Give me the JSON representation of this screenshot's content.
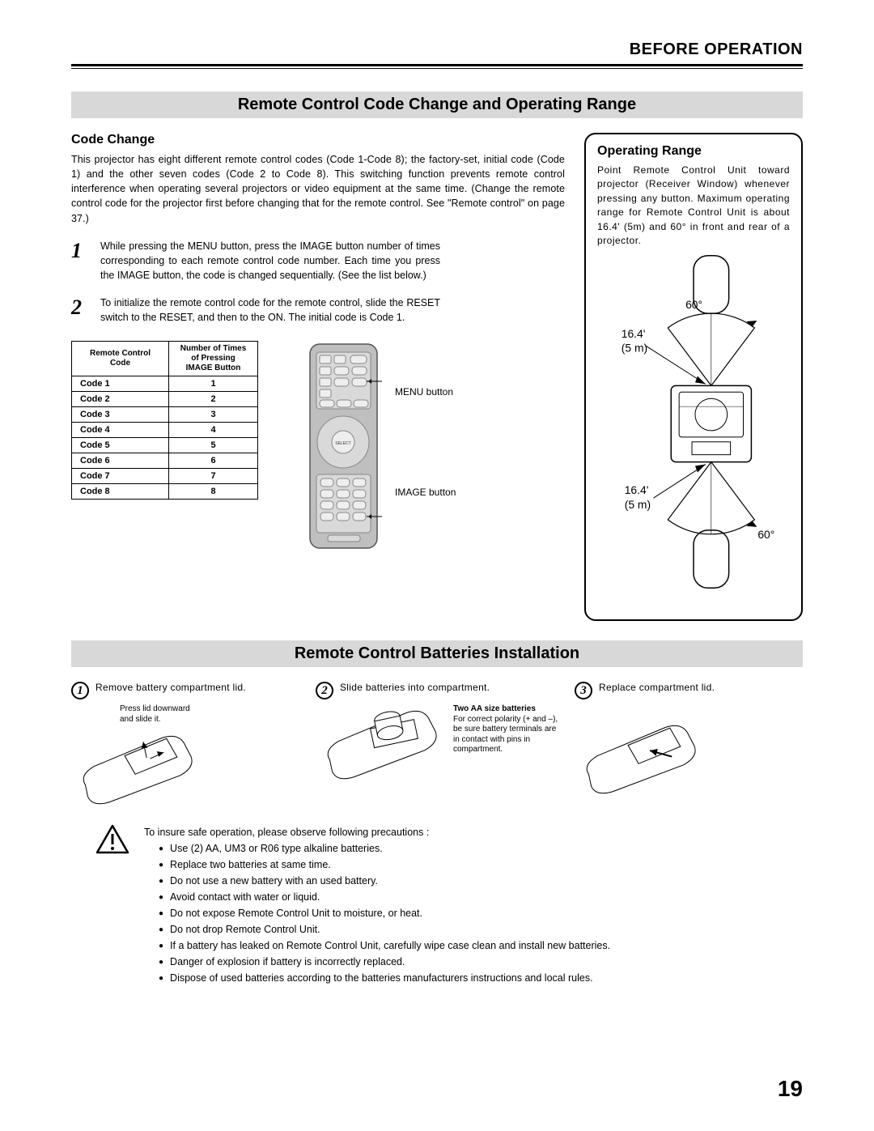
{
  "header": {
    "title": "BEFORE OPERATION"
  },
  "section1": {
    "bar": "Remote Control Code Change and Operating Range",
    "code_change": {
      "heading": "Code Change",
      "intro": "This projector has eight different remote control codes (Code 1-Code 8); the factory-set, initial code (Code 1) and the other seven codes (Code 2 to Code 8). This switching function prevents remote control interference when operating several projectors or video equipment at the same time.  (Change the remote control code for the projector first before changing that for the remote control.  See \"Remote control\" on page 37.)",
      "step1_num": "1",
      "step1": "While pressing the MENU button, press the IMAGE button number of times corresponding to each remote control code number. Each time you press the IMAGE button, the code is changed sequentially.  (See the list below.)",
      "step2_num": "2",
      "step2": "To initialize the remote control code for the remote control, slide the RESET switch to the RESET, and then to the ON. The initial code is Code 1."
    },
    "table": {
      "th1": "Remote Control Code",
      "th2": "Number of Times of Pressing IMAGE Button",
      "rows": [
        [
          "Code 1",
          "1"
        ],
        [
          "Code 2",
          "2"
        ],
        [
          "Code 3",
          "3"
        ],
        [
          "Code 4",
          "4"
        ],
        [
          "Code 5",
          "5"
        ],
        [
          "Code 6",
          "6"
        ],
        [
          "Code 7",
          "7"
        ],
        [
          "Code 8",
          "8"
        ]
      ]
    },
    "callouts": {
      "menu": "MENU button",
      "image": "IMAGE button"
    },
    "range": {
      "heading": "Operating Range",
      "text": "Point Remote Control Unit toward projector (Receiver Window) whenever pressing any button. Maximum operating range for Remote Control Unit is about 16.4' (5m) and 60° in front and rear of a projector.",
      "angle": "60°",
      "dist1": "16.4'",
      "dist2": "(5 m)"
    }
  },
  "section2": {
    "bar": "Remote Control Batteries Installation",
    "steps": [
      {
        "num": "1",
        "text": "Remove battery compartment lid.",
        "note_small": "Press lid downward and slide it."
      },
      {
        "num": "2",
        "text": "Slide batteries into compartment.",
        "note_bold": "Two AA size batteries",
        "note_small": "For correct polarity (+ and –), be sure battery terminals are in contact with pins in compartment."
      },
      {
        "num": "3",
        "text": "Replace compartment lid."
      }
    ]
  },
  "precautions": {
    "lead": "To insure safe operation, please observe following precautions :",
    "items": [
      "Use (2) AA, UM3 or R06 type alkaline batteries.",
      "Replace two batteries at same time.",
      "Do not use a new battery with an used battery.",
      "Avoid contact with water or liquid.",
      "Do not expose Remote Control Unit to moisture, or heat.",
      "Do not drop Remote Control Unit.",
      "If a battery has leaked on Remote Control Unit, carefully wipe case clean and install new batteries.",
      "Danger of explosion if battery is incorrectly replaced.",
      "Dispose of used batteries according to the batteries manufacturers instructions and local rules."
    ]
  },
  "page_number": "19",
  "colors": {
    "bar_bg": "#d8d8d8",
    "text": "#000000",
    "remote_fill": "#bfbfbf",
    "remote_btn": "#e5e5e5"
  }
}
